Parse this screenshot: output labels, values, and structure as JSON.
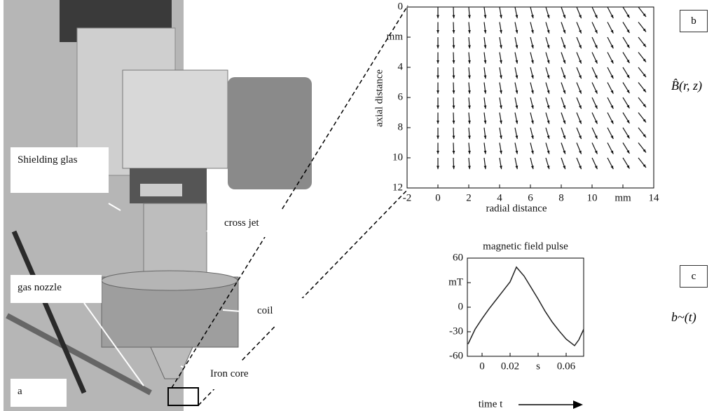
{
  "photo": {
    "labels": [
      "Shielding glas",
      "cross jet",
      "gas nozzle",
      "coil",
      "Iron core",
      "a"
    ]
  },
  "chart_data": [
    {
      "type": "quiver",
      "panel": "b",
      "formula": "B̂(r, z)",
      "xlabel": "radial distance",
      "ylabel": "axial distance",
      "xlim": [
        -2,
        14
      ],
      "ylim": [
        0,
        12
      ],
      "y_inverted": true,
      "xticks": [
        -2,
        0,
        2,
        4,
        6,
        8,
        10,
        {
          "value": 12,
          "label": "mm"
        },
        14
      ],
      "yticks": [
        0,
        {
          "value": 2,
          "label": "mm"
        },
        4,
        6,
        8,
        10,
        12
      ],
      "r": [
        0,
        1,
        2,
        3,
        4,
        5,
        6,
        7,
        8,
        9,
        10,
        11,
        12,
        13
      ],
      "z": [
        0,
        1,
        2,
        3,
        4,
        5,
        6,
        7,
        8,
        9,
        10
      ],
      "u": [
        0,
        0.03,
        0.06,
        0.09,
        0.12,
        0.15,
        0.18,
        0.22,
        0.26,
        0.3,
        0.34,
        0.38,
        0.43,
        0.5
      ],
      "w": [
        0.75,
        0.75,
        0.75,
        0.75,
        0.75,
        0.75,
        0.75,
        0.75,
        0.75,
        0.75,
        0.75,
        0.75,
        0.72,
        0.65
      ],
      "color": "#111111"
    },
    {
      "type": "line",
      "panel": "c",
      "formula": "b~(t)",
      "title": "magnetic field pulse",
      "xlabel": "time t",
      "xlim": [
        -0.0105,
        0.0725
      ],
      "ylim": [
        -60,
        60
      ],
      "xticks": [
        0,
        0.02,
        {
          "value": 0.04,
          "label": "s"
        },
        0.06
      ],
      "yticks": [
        60,
        {
          "value": 30,
          "label": "mT"
        },
        0,
        -30,
        -60
      ],
      "x": [
        -0.01,
        -0.005,
        0,
        0.005,
        0.01,
        0.015,
        0.02,
        0.0245,
        0.03,
        0.035,
        0.04,
        0.045,
        0.05,
        0.055,
        0.06,
        0.066,
        0.069,
        0.0725
      ],
      "values": [
        -45,
        -27,
        -14,
        -2,
        9,
        20,
        31,
        49,
        38,
        24,
        10,
        -5,
        -18,
        -29,
        -39,
        -47,
        -40,
        -27
      ],
      "color": "#222222"
    }
  ]
}
